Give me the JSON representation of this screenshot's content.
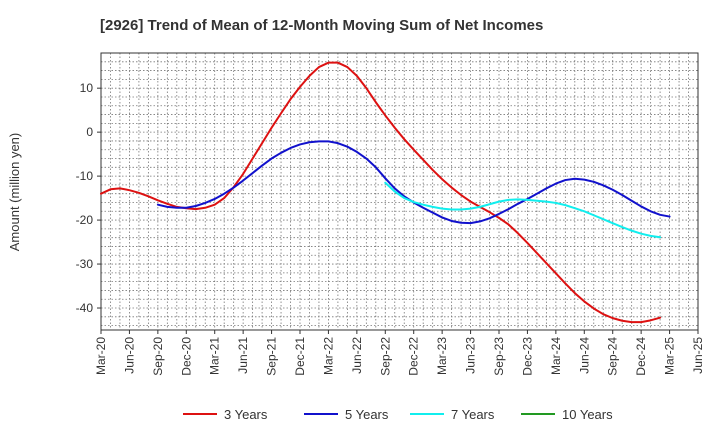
{
  "chart_data": {
    "type": "line",
    "title": "[2926]  Trend of Mean of 12-Month Moving Sum of Net Incomes",
    "xlabel": "",
    "ylabel": "Amount (million yen)",
    "x_ticks": [
      "Mar-20",
      "Jun-20",
      "Sep-20",
      "Dec-20",
      "Mar-21",
      "Jun-21",
      "Sep-21",
      "Dec-21",
      "Mar-22",
      "Jun-22",
      "Sep-22",
      "Dec-22",
      "Mar-23",
      "Jun-23",
      "Sep-23",
      "Dec-23",
      "Mar-24",
      "Jun-24",
      "Sep-24",
      "Dec-24",
      "Mar-25",
      "Jun-25"
    ],
    "y_ticks": [
      10,
      0,
      -10,
      -20,
      -30,
      -40
    ],
    "ylim": [
      -45,
      18
    ],
    "grid": true,
    "legend_position": "bottom",
    "series": [
      {
        "name": "3 Years",
        "color": "#dd1111",
        "start_index": 0,
        "values": [
          -14,
          -13,
          -12.8,
          -13.2,
          -13.8,
          -14.6,
          -15.5,
          -16.3,
          -17,
          -17.3,
          -17.5,
          -17.2,
          -16.5,
          -15,
          -12.5,
          -9.5,
          -6,
          -2.5,
          1,
          4.3,
          7.5,
          10.3,
          12.8,
          14.8,
          15.8,
          15.8,
          14.8,
          12.8,
          10,
          6.8,
          3.8,
          1,
          -1.6,
          -4,
          -6.3,
          -8.6,
          -10.7,
          -12.6,
          -14.3,
          -15.8,
          -17,
          -18.2,
          -19.5,
          -21,
          -23,
          -25.2,
          -27.5,
          -29.8,
          -32.1,
          -34.4,
          -36.6,
          -38.5,
          -40.1,
          -41.4,
          -42.3,
          -42.9,
          -43.2,
          -43.2,
          -42.8,
          -42.2
        ]
      },
      {
        "name": "5 Years",
        "color": "#1111cc",
        "start_index": 6,
        "values": [
          -16.5,
          -17,
          -17.2,
          -17.2,
          -16.8,
          -16.1,
          -15.2,
          -14,
          -12.6,
          -11,
          -9.3,
          -7.6,
          -6,
          -4.7,
          -3.6,
          -2.8,
          -2.3,
          -2.1,
          -2.1,
          -2.5,
          -3.3,
          -4.5,
          -6,
          -8,
          -10.5,
          -12.8,
          -14.6,
          -16,
          -17.2,
          -18.3,
          -19.4,
          -20.2,
          -20.6,
          -20.7,
          -20.3,
          -19.6,
          -18.6,
          -17.5,
          -16.3,
          -15.2,
          -14,
          -12.8,
          -11.7,
          -10.9,
          -10.6,
          -10.8,
          -11.3,
          -12.1,
          -13.1,
          -14.3,
          -15.6,
          -16.9,
          -18,
          -18.8,
          -19.2
        ]
      },
      {
        "name": "7 Years",
        "color": "#11eeee",
        "start_index": 30,
        "values": [
          -11.5,
          -13.5,
          -15,
          -15.9,
          -16.5,
          -17,
          -17.4,
          -17.6,
          -17.6,
          -17.4,
          -17,
          -16.4,
          -15.8,
          -15.4,
          -15.3,
          -15.4,
          -15.6,
          -15.8,
          -16.1,
          -16.6,
          -17.3,
          -18,
          -18.9,
          -19.8,
          -20.7,
          -21.6,
          -22.4,
          -23.1,
          -23.6,
          -23.9
        ]
      },
      {
        "name": "10 Years",
        "color": "#229922",
        "start_index": 0,
        "values": []
      }
    ]
  }
}
